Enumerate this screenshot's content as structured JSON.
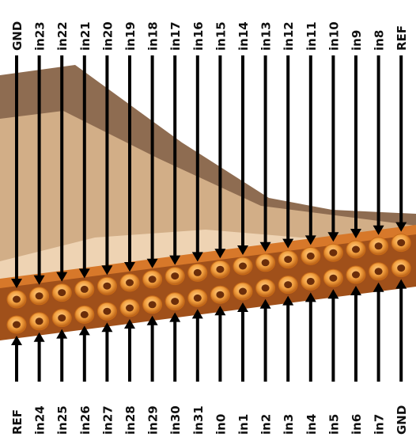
{
  "top_labels": [
    "GND",
    "in23",
    "in22",
    "in21",
    "in20",
    "in19",
    "in18",
    "in17",
    "in16",
    "in15",
    "in14",
    "in13",
    "in12",
    "in11",
    "in10",
    "in9",
    "in8",
    "REF"
  ],
  "bottom_labels": [
    "REF",
    "in24",
    "in25",
    "in26",
    "in27",
    "in28",
    "in29",
    "in30",
    "in31",
    "in0",
    "in1",
    "in2",
    "in3",
    "in4",
    "in5",
    "in6",
    "in7",
    "GND"
  ],
  "colors": {
    "arrow": "#000000",
    "pin_ring": "#f2a040",
    "pin_ring_dark": "#c76a18",
    "pin_hole": "#6b2e0a",
    "board": "#f0d2b0",
    "board_dark": "#5a3a22",
    "header_body": "#a0501a"
  }
}
